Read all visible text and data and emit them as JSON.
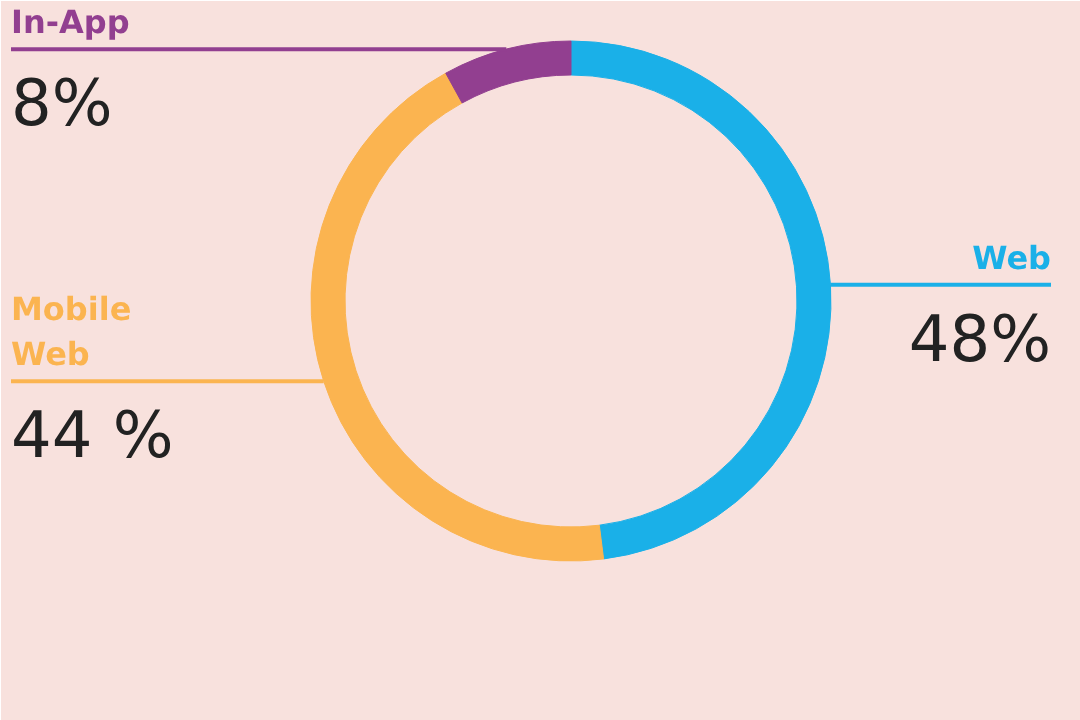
{
  "chart_data": {
    "type": "donut",
    "categories": [
      "Web",
      "Mobile Web",
      "In-App"
    ],
    "values": [
      48,
      44,
      8
    ],
    "colors": [
      "#1ab0e8",
      "#fbb450",
      "#923f90"
    ],
    "value_labels": [
      "48%",
      "44 %",
      "8%"
    ]
  }
}
